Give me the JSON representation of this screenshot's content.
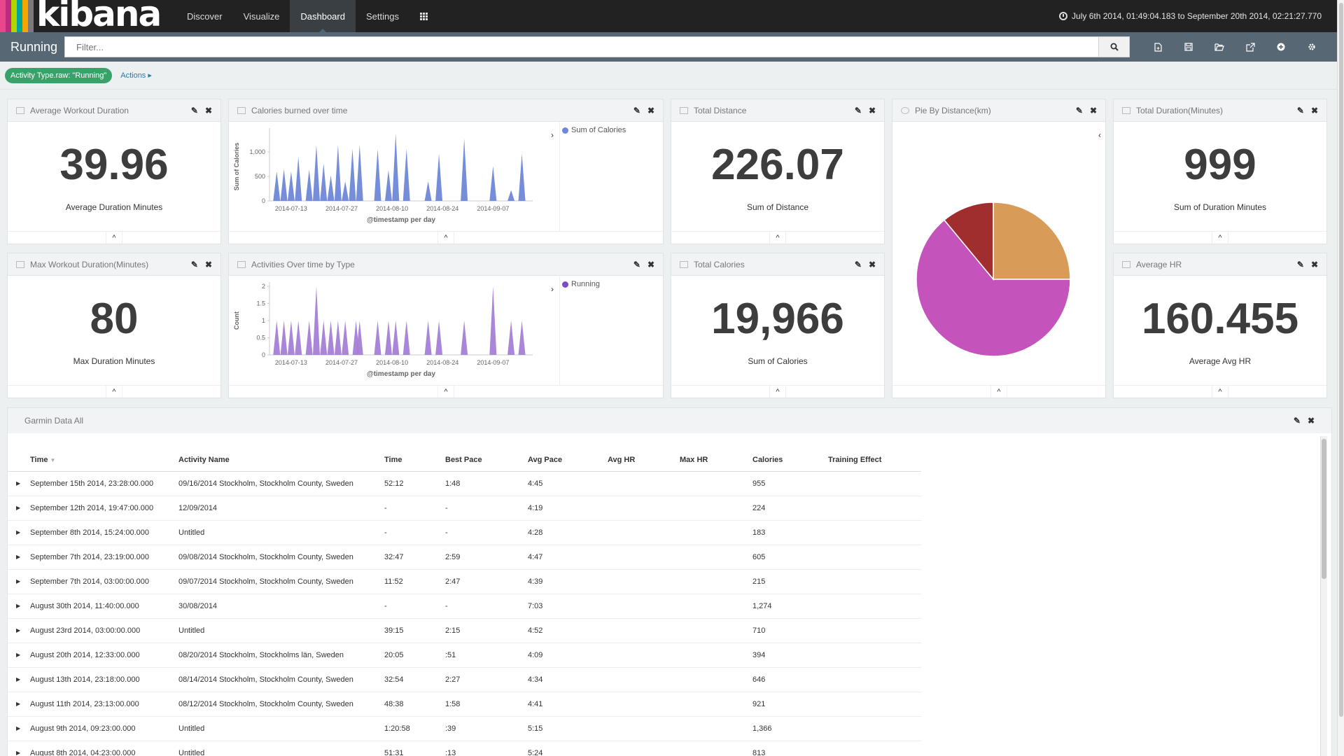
{
  "brand": {
    "name": "kibana",
    "stripe_colors": [
      "#e8488b",
      "#bd2b80",
      "#b4d400",
      "#00a69b",
      "#f5a700",
      "#7a7a7a"
    ]
  },
  "nav": {
    "links": [
      {
        "label": "Discover"
      },
      {
        "label": "Visualize"
      },
      {
        "label": "Dashboard"
      },
      {
        "label": "Settings"
      }
    ],
    "apps_icon": "grid-icon",
    "time_range": "July 6th 2014, 01:49:04.183 to September 20th 2014, 02:21:27.770",
    "time_icon": "clock-icon"
  },
  "subnav": {
    "title": "Running",
    "filter_placeholder": "Filter...",
    "icons": [
      "new-dashboard-icon",
      "save-icon",
      "open-folder-icon",
      "share-icon",
      "add-panel-icon",
      "gear-icon"
    ]
  },
  "filterbar": {
    "pill": "Activity Type.raw: \"Running\"",
    "actions": "Actions"
  },
  "panels": {
    "avg_duration": {
      "title": "Average Workout Duration",
      "value": "39.96",
      "label": "Average Duration Minutes"
    },
    "calories_chart": {
      "title": "Calories burned over time"
    },
    "total_distance": {
      "title": "Total Distance",
      "value": "226.07",
      "label": "Sum of Distance"
    },
    "pie": {
      "title": "Pie By Distance(km)"
    },
    "total_duration": {
      "title": "Total Duration(Minutes)",
      "value": "999",
      "label": "Sum of Duration Minutes"
    },
    "max_duration": {
      "title": "Max Workout Duration(Minutes)",
      "value": "80",
      "label": "Max Duration Minutes"
    },
    "activities_chart": {
      "title": "Activities Over time by Type"
    },
    "total_calories": {
      "title": "Total Calories",
      "value": "19,966",
      "label": "Sum of Calories"
    },
    "avg_hr": {
      "title": "Average HR",
      "value": "160.455",
      "label": "Average Avg HR"
    }
  },
  "chart_data": [
    {
      "type": "area",
      "title": "",
      "xlabel": "@timestamp per day",
      "ylabel": "Sum of Calories",
      "x_ticks": [
        "2014-07-13",
        "2014-07-27",
        "2014-08-10",
        "2014-08-24",
        "2014-09-07"
      ],
      "y_ticks": [
        "0",
        "500",
        "1,000"
      ],
      "ylim": [
        0,
        1400
      ],
      "series": [
        {
          "name": "Sum of Calories",
          "color": "#6f87d8",
          "points": [
            [
              "2014-07-09",
              600
            ],
            [
              "2014-07-11",
              650
            ],
            [
              "2014-07-13",
              600
            ],
            [
              "2014-07-15",
              900
            ],
            [
              "2014-07-18",
              640
            ],
            [
              "2014-07-20",
              1140
            ],
            [
              "2014-07-22",
              760
            ],
            [
              "2014-07-24",
              520
            ],
            [
              "2014-07-26",
              1140
            ],
            [
              "2014-07-28",
              400
            ],
            [
              "2014-07-30",
              1060
            ],
            [
              "2014-08-01",
              1150
            ],
            [
              "2014-08-06",
              1060
            ],
            [
              "2014-08-09",
              630
            ],
            [
              "2014-08-11",
              1370
            ],
            [
              "2014-08-14",
              1060
            ],
            [
              "2014-08-20",
              400
            ],
            [
              "2014-08-23",
              960
            ],
            [
              "2014-08-30",
              1270
            ],
            [
              "2014-09-07",
              710
            ],
            [
              "2014-09-12",
              220
            ],
            [
              "2014-09-15",
              960
            ]
          ]
        }
      ],
      "legend": "right"
    },
    {
      "type": "area",
      "title": "",
      "xlabel": "@timestamp per day",
      "ylabel": "Count",
      "x_ticks": [
        "2014-07-13",
        "2014-07-27",
        "2014-08-10",
        "2014-08-24",
        "2014-09-07"
      ],
      "y_ticks": [
        "0",
        "0.5",
        "1",
        "1.5",
        "2"
      ],
      "ylim": [
        0,
        2
      ],
      "series": [
        {
          "name": "Running",
          "color": "#a57fd6",
          "points": [
            [
              "2014-07-09",
              1
            ],
            [
              "2014-07-11",
              1
            ],
            [
              "2014-07-13",
              1
            ],
            [
              "2014-07-15",
              1
            ],
            [
              "2014-07-18",
              1
            ],
            [
              "2014-07-20",
              2
            ],
            [
              "2014-07-22",
              1
            ],
            [
              "2014-07-24",
              1
            ],
            [
              "2014-07-26",
              1
            ],
            [
              "2014-07-28",
              1
            ],
            [
              "2014-07-31",
              1
            ],
            [
              "2014-08-01",
              1
            ],
            [
              "2014-08-06",
              1
            ],
            [
              "2014-08-09",
              1
            ],
            [
              "2014-08-11",
              1
            ],
            [
              "2014-08-14",
              1
            ],
            [
              "2014-08-20",
              1
            ],
            [
              "2014-08-23",
              1
            ],
            [
              "2014-08-30",
              1
            ],
            [
              "2014-09-07",
              2
            ],
            [
              "2014-09-12",
              1
            ],
            [
              "2014-09-15",
              1
            ]
          ]
        }
      ],
      "legend": "right"
    },
    {
      "type": "pie",
      "title": "",
      "slices": [
        {
          "value": 25,
          "color": "#d89b58"
        },
        {
          "value": 64,
          "color": "#c454bc"
        },
        {
          "value": 11,
          "color": "#a12e2e"
        }
      ]
    }
  ],
  "table": {
    "title": "Garmin Data All",
    "columns": [
      "Time",
      "Activity Name",
      "Time",
      "Best Pace",
      "Avg Pace",
      "Avg HR",
      "Max HR",
      "Calories",
      "Training Effect"
    ],
    "rows": [
      [
        "September 15th 2014, 23:28:00.000",
        "09/16/2014 Stockholm, Stockholm County, Sweden",
        "52:12",
        "1:48",
        "4:45",
        "",
        "",
        "955",
        ""
      ],
      [
        "September 12th 2014, 19:47:00.000",
        "12/09/2014",
        "-",
        "-",
        "4:19",
        "",
        "",
        "224",
        ""
      ],
      [
        "September 8th 2014, 15:24:00.000",
        "Untitled",
        "-",
        "-",
        "4:28",
        "",
        "",
        "183",
        ""
      ],
      [
        "September 7th 2014, 23:19:00.000",
        "09/08/2014 Stockholm, Stockholm County, Sweden",
        "32:47",
        "2:59",
        "4:47",
        "",
        "",
        "605",
        ""
      ],
      [
        "September 7th 2014, 03:00:00.000",
        "09/07/2014 Stockholm, Stockholm County, Sweden",
        "11:52",
        "2:47",
        "4:39",
        "",
        "",
        "215",
        ""
      ],
      [
        "August 30th 2014, 11:40:00.000",
        "30/08/2014",
        "-",
        "-",
        "7:03",
        "",
        "",
        "1,274",
        ""
      ],
      [
        "August 23rd 2014, 03:00:00.000",
        "Untitled",
        "39:15",
        "2:15",
        "4:52",
        "",
        "",
        "710",
        ""
      ],
      [
        "August 20th 2014, 12:33:00.000",
        "08/20/2014 Stockholm, Stockholms län, Sweden",
        "20:05",
        ":51",
        "4:09",
        "",
        "",
        "394",
        ""
      ],
      [
        "August 13th 2014, 23:18:00.000",
        "08/14/2014 Stockholm, Stockholm County, Sweden",
        "32:54",
        "2:27",
        "4:34",
        "",
        "",
        "646",
        ""
      ],
      [
        "August 11th 2014, 23:13:00.000",
        "08/12/2014 Stockholm, Stockholm County, Sweden",
        "48:38",
        "1:58",
        "4:41",
        "",
        "",
        "921",
        ""
      ],
      [
        "August 9th 2014, 09:23:00.000",
        "Untitled",
        "1:20:58",
        ":39",
        "5:15",
        "",
        "",
        "1,366",
        ""
      ],
      [
        "August 8th 2014, 04:23:00.000",
        "Untitled",
        "51:31",
        ":13",
        "5:24",
        "",
        "",
        "813",
        ""
      ]
    ]
  }
}
